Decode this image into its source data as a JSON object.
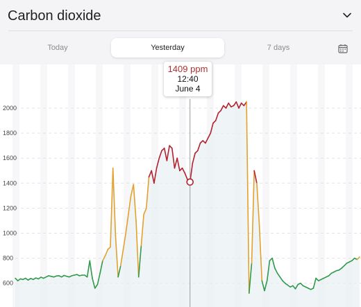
{
  "header": {
    "title": "Carbon dioxide"
  },
  "tabs": [
    {
      "label": "Today",
      "active": false
    },
    {
      "label": "Yesterday",
      "active": true
    },
    {
      "label": "7 days",
      "active": false
    }
  ],
  "tooltip": {
    "value": "1409 ppm",
    "time": "12:40",
    "date": "June 4"
  },
  "colors": {
    "good": "#2e9a4a",
    "medium": "#e3a02a",
    "bad": "#b3202e",
    "fill": "#e8f0f3",
    "cursor": "#9a9a9a"
  },
  "chart_data": {
    "type": "line",
    "ylim": [
      400,
      2100
    ],
    "yticks": [
      "600",
      "800",
      "1000",
      "1200",
      "1400",
      "1600",
      "1800",
      "2000"
    ],
    "selected_index": 68,
    "values": [
      640,
      620,
      635,
      630,
      640,
      625,
      638,
      630,
      642,
      635,
      648,
      640,
      650,
      660,
      655,
      650,
      658,
      660,
      650,
      662,
      656,
      650,
      660,
      665,
      670,
      660,
      665,
      665,
      650,
      780,
      640,
      560,
      590,
      680,
      780,
      820,
      870,
      890,
      1520,
      980,
      650,
      740,
      870,
      1000,
      1150,
      1300,
      1390,
      1100,
      650,
      900,
      1150,
      1200,
      1450,
      1500,
      1400,
      1520,
      1600,
      1660,
      1680,
      1580,
      1700,
      1680,
      1520,
      1600,
      1500,
      1520,
      1480,
      1430,
      1409,
      1560,
      1640,
      1660,
      1720,
      1740,
      1720,
      1760,
      1800,
      1880,
      1900,
      1960,
      1980,
      2020,
      2000,
      2040,
      2010,
      2020,
      2050,
      2000,
      2040,
      2020,
      2050,
      520,
      760,
      1500,
      1400,
      1060,
      620,
      540,
      620,
      780,
      800,
      720,
      680,
      650,
      620,
      600,
      585,
      570,
      580,
      555,
      590,
      600,
      580,
      570,
      560,
      550,
      560,
      640,
      620,
      630,
      640,
      650,
      660,
      680,
      690,
      700,
      705,
      720,
      740,
      760,
      770,
      780,
      800,
      790,
      810
    ]
  }
}
